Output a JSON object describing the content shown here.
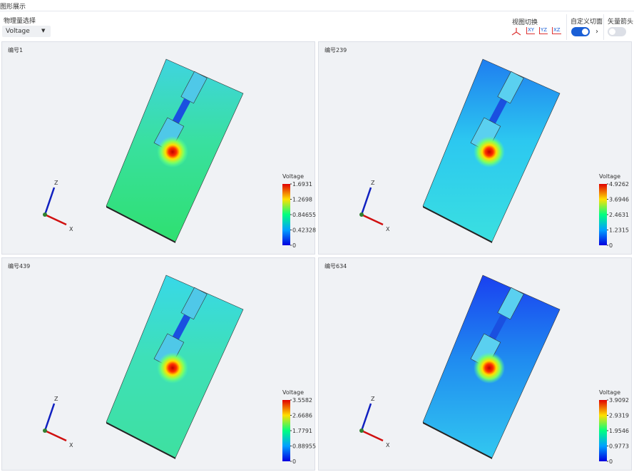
{
  "header": {
    "title": "图形展示"
  },
  "toolbar": {
    "quantity_label": "物理量选择",
    "quantity_value": "Voltage",
    "view_label": "视图切换",
    "views": [
      "XY",
      "YZ",
      "XZ"
    ],
    "section_label": "自定义切面",
    "vector_label": "矢量箭头"
  },
  "panels": [
    {
      "label": "编号1",
      "colorbar": {
        "title": "Voltage",
        "ticks": [
          1.6931,
          1.2698,
          0.84655,
          0.42328,
          0
        ]
      },
      "axes": {
        "z": "Z",
        "x": "X"
      }
    },
    {
      "label": "编号239",
      "colorbar": {
        "title": "Voltage",
        "ticks": [
          4.9262,
          3.6946,
          2.4631,
          1.2315,
          0
        ]
      },
      "axes": {
        "z": "Z",
        "x": "X"
      }
    },
    {
      "label": "编号439",
      "colorbar": {
        "title": "Voltage",
        "ticks": [
          3.5582,
          2.6686,
          1.7791,
          0.88955,
          0
        ]
      },
      "axes": {
        "z": "Z",
        "x": "X"
      }
    },
    {
      "label": "编号634",
      "colorbar": {
        "title": "Voltage",
        "ticks": [
          3.9092,
          2.9319,
          1.9546,
          0.9773,
          0
        ]
      },
      "axes": {
        "z": "Z",
        "x": "X"
      }
    }
  ]
}
